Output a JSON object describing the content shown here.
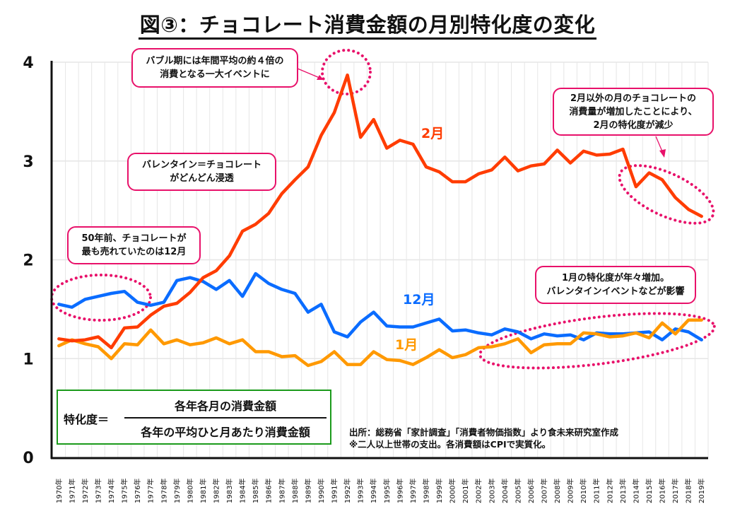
{
  "title": "図③：チョコレート消費金額の月別特化度の変化",
  "chart_data": {
    "type": "line",
    "title": "図③：チョコレート消費金額の月別特化度の変化",
    "xlabel": "",
    "ylabel": "",
    "ylim": [
      0,
      4
    ],
    "yticks": [
      "0",
      "1",
      "2",
      "3",
      "4"
    ],
    "grid": true,
    "x": [
      "1970年",
      "1971年",
      "1972年",
      "1973年",
      "1974年",
      "1975年",
      "1976年",
      "1977年",
      "1978年",
      "1979年",
      "1980年",
      "1981年",
      "1982年",
      "1983年",
      "1984年",
      "1985年",
      "1986年",
      "1987年",
      "1988年",
      "1989年",
      "1990年",
      "1991年",
      "1992年",
      "1993年",
      "1994年",
      "1995年",
      "1996年",
      "1997年",
      "1998年",
      "1999年",
      "2000年",
      "2001年",
      "2002年",
      "2003年",
      "2004年",
      "2005年",
      "2006年",
      "2007年",
      "2008年",
      "2009年",
      "2010年",
      "2011年",
      "2012年",
      "2013年",
      "2014年",
      "2015年",
      "2016年",
      "2017年",
      "2018年",
      "2019年"
    ],
    "series": [
      {
        "name": "2月",
        "color": "#ff3c00",
        "values": [
          1.2,
          1.18,
          1.19,
          1.22,
          1.11,
          1.31,
          1.32,
          1.44,
          1.53,
          1.56,
          1.67,
          1.82,
          1.89,
          2.04,
          2.29,
          2.36,
          2.47,
          2.67,
          2.81,
          2.94,
          3.26,
          3.49,
          3.87,
          3.24,
          3.42,
          3.13,
          3.21,
          3.17,
          2.94,
          2.89,
          2.79,
          2.79,
          2.87,
          2.91,
          3.04,
          2.9,
          2.95,
          2.97,
          3.11,
          2.98,
          3.1,
          3.06,
          3.07,
          3.12,
          2.74,
          2.88,
          2.81,
          2.63,
          2.51,
          2.44
        ]
      },
      {
        "name": "12月",
        "color": "#0a6cff",
        "values": [
          1.55,
          1.52,
          1.6,
          1.63,
          1.66,
          1.68,
          1.57,
          1.54,
          1.57,
          1.79,
          1.82,
          1.78,
          1.7,
          1.79,
          1.63,
          1.86,
          1.76,
          1.7,
          1.66,
          1.47,
          1.55,
          1.27,
          1.22,
          1.37,
          1.47,
          1.33,
          1.32,
          1.32,
          1.36,
          1.4,
          1.28,
          1.29,
          1.26,
          1.24,
          1.3,
          1.27,
          1.2,
          1.25,
          1.23,
          1.24,
          1.19,
          1.26,
          1.25,
          1.25,
          1.26,
          1.27,
          1.19,
          1.3,
          1.27,
          1.19
        ]
      },
      {
        "name": "1月",
        "color": "#ff9900",
        "values": [
          1.13,
          1.19,
          1.15,
          1.12,
          1.0,
          1.15,
          1.14,
          1.29,
          1.15,
          1.19,
          1.14,
          1.16,
          1.21,
          1.15,
          1.19,
          1.07,
          1.07,
          1.02,
          1.03,
          0.93,
          0.97,
          1.07,
          0.94,
          0.94,
          1.07,
          0.99,
          0.98,
          0.94,
          1.01,
          1.09,
          1.01,
          1.04,
          1.11,
          1.12,
          1.15,
          1.2,
          1.06,
          1.14,
          1.15,
          1.15,
          1.26,
          1.25,
          1.22,
          1.23,
          1.26,
          1.21,
          1.36,
          1.25,
          1.39,
          1.39
        ]
      }
    ],
    "series_labels": [
      {
        "series": "2月",
        "text": "2月"
      },
      {
        "series": "12月",
        "text": "12月"
      },
      {
        "series": "1月",
        "text": "1月"
      }
    ],
    "annotations": [
      {
        "id": "bubble",
        "text_lines": [
          "バブル期には年間平均の約４倍の",
          "消費となる一大イベントに"
        ]
      },
      {
        "id": "valentine",
        "text_lines": [
          "バレンタイン＝チョコレート",
          "がどんどん浸透"
        ]
      },
      {
        "id": "fifty-years",
        "text_lines": [
          "50年前、チョコレートが",
          "最も売れていたのは12月"
        ]
      },
      {
        "id": "feb-decline",
        "text_lines": [
          "2月以外の月のチョコレートの",
          "消費量が増加したことにより、",
          "2月の特化度が減少"
        ]
      },
      {
        "id": "jan-increase",
        "text_lines": [
          "1月の特化度が年々増加。",
          "バレンタインイベントなどが影響"
        ]
      }
    ],
    "highlight_color": "#e8116a"
  },
  "formula": {
    "lhs": "特化度＝",
    "numerator": "各年各月の消費金額",
    "denominator": "各年の平均ひと月あたり消費金額"
  },
  "source": {
    "line1": "出所：総務省「家計調査」「消費者物価指数」より食未来研究室作成",
    "line2": "※二人以上世帯の支出。各消費額はCPIで実質化。"
  }
}
